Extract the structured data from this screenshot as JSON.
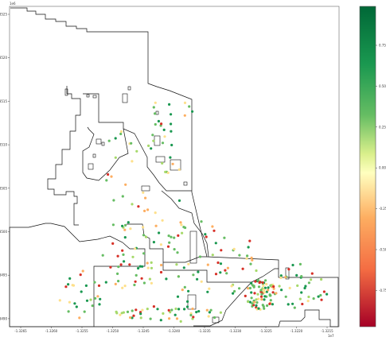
{
  "map": {
    "x_offset_label": "1e7",
    "x_ticks": [
      "-1.3265",
      "-1.3260",
      "-1.3255",
      "-1.3250",
      "-1.3245",
      "-1.3240",
      "-1.3235",
      "-1.3230",
      "-1.3225",
      "-1.3220",
      "-1.3215"
    ],
    "y_ticks": [
      "4.3525",
      "4.3520",
      "4.3515",
      "4.3510",
      "4.3505",
      "4.3500",
      "4.3495",
      "4.3490"
    ],
    "y_offset_label": "1e6"
  },
  "colorbar": {
    "ticks": [
      "0.75",
      "0.50",
      "0.25",
      "0.00",
      "-0.25",
      "-0.50",
      "-0.75"
    ],
    "colors": {
      "top": "#006837",
      "upper": "#66bd63",
      "upper_mid": "#d9ef8b",
      "mid": "#ffffbf",
      "lower_mid": "#fdae61",
      "lower": "#f46d43",
      "bottom": "#a50026"
    }
  },
  "point_colors": {
    "dark_green": "#1a9850",
    "green": "#66bd63",
    "light_green": "#a6d96a",
    "yellow": "#fee08b",
    "orange": "#fdae61",
    "red": "#d73027"
  }
}
